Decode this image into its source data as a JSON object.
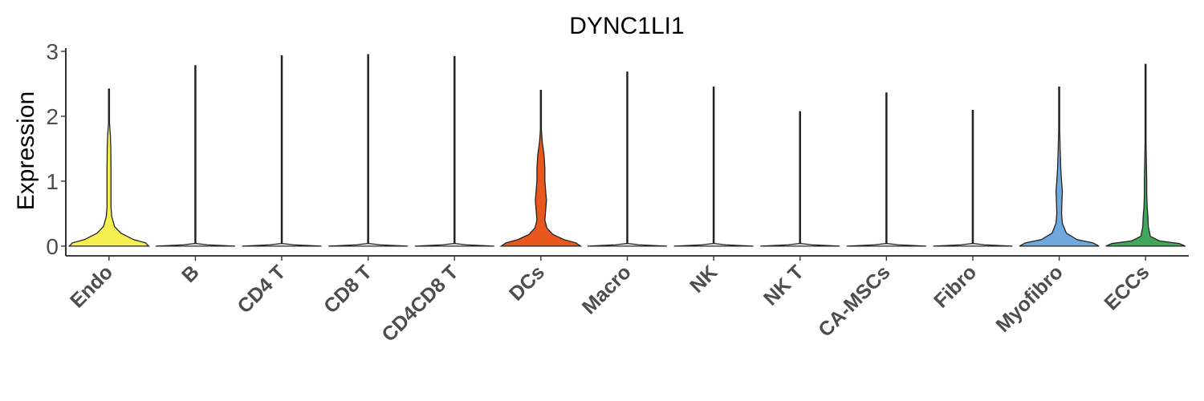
{
  "chart_data": {
    "type": "violin",
    "title": "DYNC1LI1",
    "xlabel": "",
    "ylabel": "Expression",
    "ylim": [
      -0.15,
      3.05
    ],
    "yticks": [
      0,
      1,
      2,
      3
    ],
    "grid": false,
    "legend": "none",
    "categories": [
      "Endo",
      "B",
      "CD4 T",
      "CD8 T",
      "CD4CD8 T",
      "DCs",
      "Macro",
      "NK",
      "NK T",
      "CA-MSCs",
      "Fibro",
      "Myofibro",
      "ECCs"
    ],
    "series": [
      {
        "category": "Endo",
        "color": "#f7ef52",
        "max": 2.42,
        "profile": [
          [
            0,
            1
          ],
          [
            0.05,
            0.92
          ],
          [
            0.1,
            0.62
          ],
          [
            0.2,
            0.3
          ],
          [
            0.3,
            0.14
          ],
          [
            0.45,
            0.07
          ],
          [
            0.6,
            0.05
          ],
          [
            0.8,
            0.05
          ],
          [
            1.0,
            0.05
          ],
          [
            1.2,
            0.05
          ],
          [
            1.5,
            0.045
          ],
          [
            1.7,
            0.035
          ],
          [
            1.9,
            0.012
          ],
          [
            2.1,
            0.007
          ],
          [
            2.3,
            0.004
          ],
          [
            2.42,
            0.0
          ]
        ]
      },
      {
        "category": "B",
        "color": "#ffffff",
        "max": 2.78,
        "profile": [
          [
            0,
            1
          ],
          [
            0.02,
            0.3
          ],
          [
            0.04,
            0.01
          ],
          [
            2.78,
            0.0
          ]
        ]
      },
      {
        "category": "CD4 T",
        "color": "#ffffff",
        "max": 2.93,
        "profile": [
          [
            0,
            1
          ],
          [
            0.02,
            0.3
          ],
          [
            0.04,
            0.01
          ],
          [
            2.93,
            0.0
          ]
        ]
      },
      {
        "category": "CD8 T",
        "color": "#ffffff",
        "max": 2.95,
        "profile": [
          [
            0,
            1
          ],
          [
            0.02,
            0.3
          ],
          [
            0.04,
            0.01
          ],
          [
            2.95,
            0.0
          ]
        ]
      },
      {
        "category": "CD4CD8 T",
        "color": "#ffffff",
        "max": 2.92,
        "profile": [
          [
            0,
            1
          ],
          [
            0.02,
            0.3
          ],
          [
            0.04,
            0.01
          ],
          [
            2.92,
            0.0
          ]
        ]
      },
      {
        "category": "DCs",
        "color": "#e8581c",
        "max": 2.4,
        "profile": [
          [
            0,
            1
          ],
          [
            0.05,
            0.88
          ],
          [
            0.1,
            0.58
          ],
          [
            0.18,
            0.3
          ],
          [
            0.28,
            0.15
          ],
          [
            0.4,
            0.1
          ],
          [
            0.55,
            0.12
          ],
          [
            0.7,
            0.14
          ],
          [
            0.85,
            0.12
          ],
          [
            1.0,
            0.1
          ],
          [
            1.2,
            0.1
          ],
          [
            1.4,
            0.08
          ],
          [
            1.6,
            0.035
          ],
          [
            1.8,
            0.012
          ],
          [
            2.1,
            0.006
          ],
          [
            2.4,
            0.0
          ]
        ]
      },
      {
        "category": "Macro",
        "color": "#ffffff",
        "max": 2.68,
        "profile": [
          [
            0,
            1
          ],
          [
            0.02,
            0.3
          ],
          [
            0.04,
            0.01
          ],
          [
            2.68,
            0.0
          ]
        ]
      },
      {
        "category": "NK",
        "color": "#ffffff",
        "max": 2.45,
        "profile": [
          [
            0,
            1
          ],
          [
            0.02,
            0.3
          ],
          [
            0.04,
            0.01
          ],
          [
            2.45,
            0.0
          ]
        ]
      },
      {
        "category": "NK T",
        "color": "#ffffff",
        "max": 2.07,
        "profile": [
          [
            0,
            1
          ],
          [
            0.02,
            0.3
          ],
          [
            0.04,
            0.01
          ],
          [
            2.07,
            0.0
          ]
        ]
      },
      {
        "category": "CA-MSCs",
        "color": "#ffffff",
        "max": 2.36,
        "profile": [
          [
            0,
            1
          ],
          [
            0.02,
            0.3
          ],
          [
            0.04,
            0.01
          ],
          [
            2.36,
            0.0
          ]
        ]
      },
      {
        "category": "Fibro",
        "color": "#ffffff",
        "max": 2.09,
        "profile": [
          [
            0,
            1
          ],
          [
            0.02,
            0.3
          ],
          [
            0.04,
            0.01
          ],
          [
            2.09,
            0.0
          ]
        ]
      },
      {
        "category": "Myofibro",
        "color": "#6fa8dc",
        "max": 2.45,
        "profile": [
          [
            0,
            1
          ],
          [
            0.05,
            0.85
          ],
          [
            0.1,
            0.45
          ],
          [
            0.2,
            0.18
          ],
          [
            0.35,
            0.08
          ],
          [
            0.5,
            0.06
          ],
          [
            0.7,
            0.07
          ],
          [
            0.85,
            0.08
          ],
          [
            1.0,
            0.06
          ],
          [
            1.2,
            0.04
          ],
          [
            1.5,
            0.025
          ],
          [
            1.8,
            0.012
          ],
          [
            2.1,
            0.006
          ],
          [
            2.45,
            0.0
          ]
        ]
      },
      {
        "category": "ECCs",
        "color": "#3fa85b",
        "max": 2.8,
        "profile": [
          [
            0,
            1
          ],
          [
            0.04,
            0.85
          ],
          [
            0.08,
            0.35
          ],
          [
            0.15,
            0.12
          ],
          [
            0.3,
            0.07
          ],
          [
            0.45,
            0.06
          ],
          [
            0.6,
            0.04
          ],
          [
            0.8,
            0.03
          ],
          [
            1.0,
            0.03
          ],
          [
            1.3,
            0.02
          ],
          [
            1.6,
            0.01
          ],
          [
            2.0,
            0.006
          ],
          [
            2.4,
            0.004
          ],
          [
            2.8,
            0.0
          ]
        ]
      }
    ]
  }
}
